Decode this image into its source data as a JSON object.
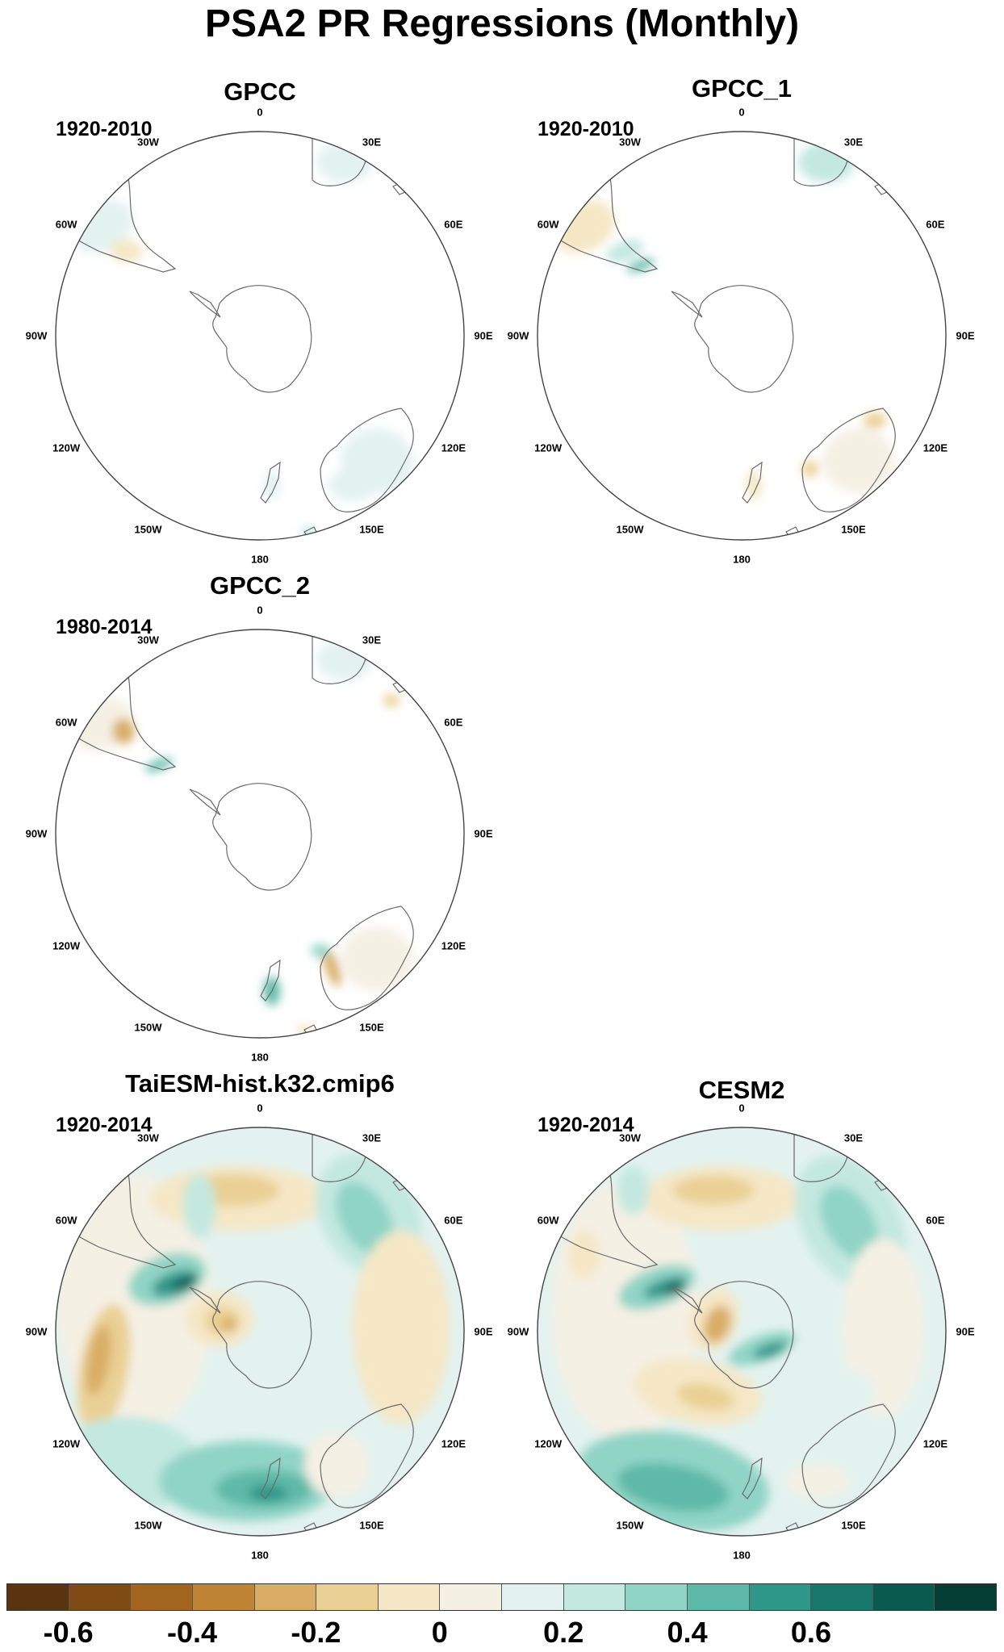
{
  "figure_title": "PSA2 PR Regressions (Monthly)",
  "panels": [
    {
      "title": "GPCC",
      "period": "1920-2010",
      "style": "obs1"
    },
    {
      "title": "GPCC_1",
      "period": "1920-2010",
      "style": "obs2"
    },
    {
      "title": "GPCC_2",
      "period": "1980-2014",
      "style": "obs3"
    },
    {
      "title": "TaiESM-hist.k32.cmip6",
      "period": "1920-2014",
      "style": "model1"
    },
    {
      "title": "CESM2",
      "period": "1920-2014",
      "style": "model2"
    }
  ],
  "lon_labels": [
    "0",
    "30E",
    "60E",
    "90E",
    "120E",
    "150E",
    "180",
    "150W",
    "120W",
    "90W",
    "60W",
    "30W"
  ],
  "colorbar": {
    "colors": [
      "#5a3410",
      "#7f4a14",
      "#a2651f",
      "#c08534",
      "#d9ad66",
      "#ead094",
      "#f5e7c6",
      "#f5f0e4",
      "#e3f2ef",
      "#c3e8e0",
      "#90d4c6",
      "#5fb9a8",
      "#2f968a",
      "#17776c",
      "#0b5a50",
      "#053e35"
    ],
    "labels": [
      "-0.6",
      "-0.4",
      "-0.2",
      "0",
      "0.2",
      "0.4",
      "0.6"
    ]
  }
}
